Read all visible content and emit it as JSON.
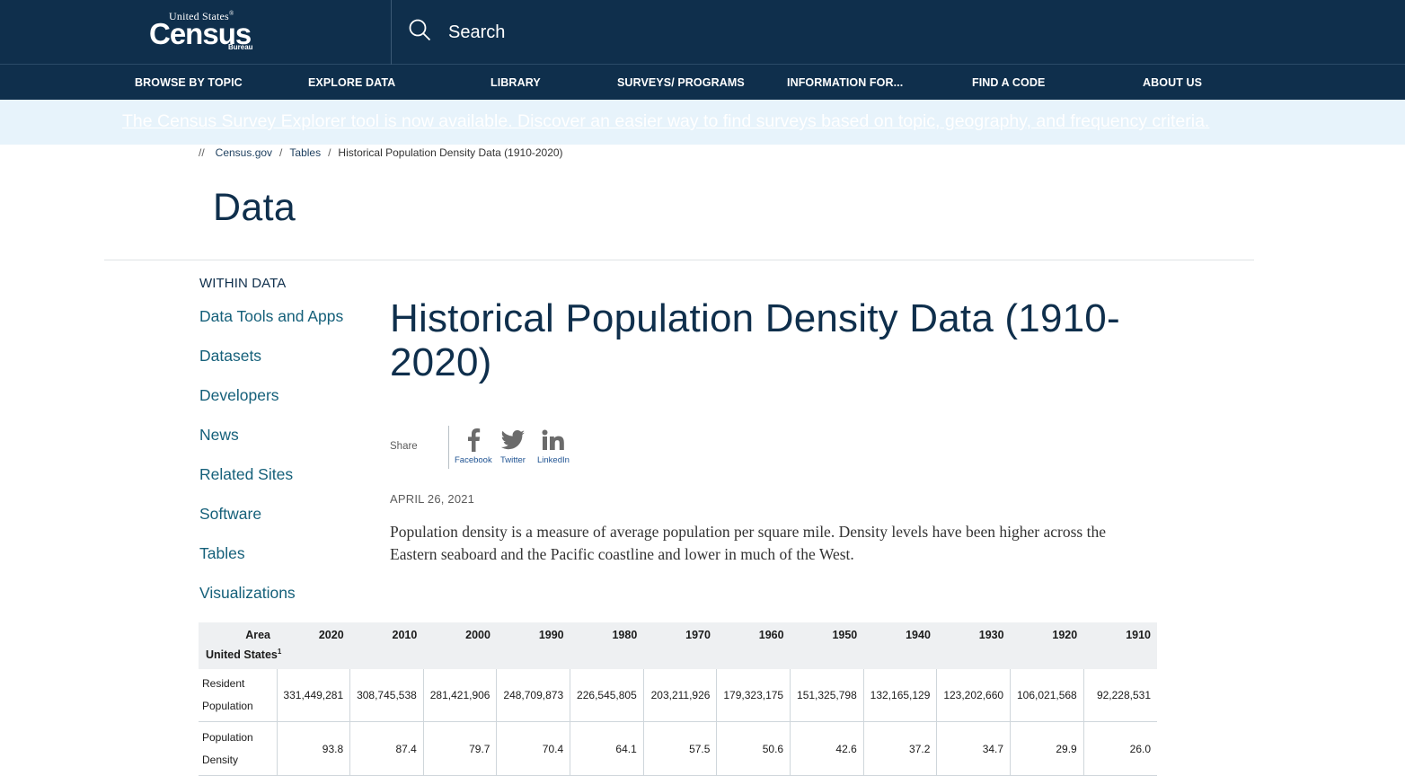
{
  "header": {
    "logo": {
      "line1": "United States",
      "registered": "®",
      "wordmark": "Census",
      "line3": "Bureau"
    },
    "search_label": "Search",
    "icons": {
      "search": "search-icon"
    },
    "colors": {
      "brand_navy": "#0f2f4c",
      "banner_bg": "#e7f3fb",
      "link_teal": "#15607a"
    }
  },
  "nav": {
    "items": [
      "BROWSE BY TOPIC",
      "EXPLORE DATA",
      "LIBRARY",
      "SURVEYS/ PROGRAMS",
      "INFORMATION FOR...",
      "FIND A CODE",
      "ABOUT US"
    ]
  },
  "banner": {
    "text": "The Census Survey Explorer tool is now available. Discover an easier way to find surveys based on topic, geography, and frequency criteria."
  },
  "breadcrumb": {
    "prefix": "//",
    "items": [
      "Census.gov",
      "Tables"
    ],
    "current": "Historical Population Density Data (1910-2020)",
    "separator": "/"
  },
  "section_title": "Data",
  "sidenav": {
    "heading": "WITHIN DATA",
    "items": [
      "Data Tools and Apps",
      "Datasets",
      "Developers",
      "News",
      "Related Sites",
      "Software",
      "Tables",
      "Visualizations"
    ]
  },
  "article": {
    "title": "Historical Population Density Data (1910-2020)",
    "share_label": "Share",
    "social": [
      {
        "label": "Facebook",
        "icon": "facebook-icon"
      },
      {
        "label": "Twitter",
        "icon": "twitter-icon"
      },
      {
        "label": "LinkedIn",
        "icon": "linkedin-icon"
      }
    ],
    "date": "APRIL 26, 2021",
    "description": "Population density is a measure of average population per square mile. Density levels have been higher across the Eastern seaboard and the Pacific coastline and lower in much of the West."
  },
  "table": {
    "header": [
      "Area",
      "2020",
      "2010",
      "2000",
      "1990",
      "1980",
      "1970",
      "1960",
      "1950",
      "1940",
      "1930",
      "1920",
      "1910"
    ],
    "group": {
      "label": "United States",
      "footnote": "1"
    },
    "rows": [
      {
        "label": "Resident Population",
        "values": [
          "331,449,281",
          "308,745,538",
          "281,421,906",
          "248,709,873",
          "226,545,805",
          "203,211,926",
          "179,323,175",
          "151,325,798",
          "132,165,129",
          "123,202,660",
          "106,021,568",
          "92,228,531"
        ]
      },
      {
        "label": "Population Density",
        "values": [
          "93.8",
          "87.4",
          "79.7",
          "70.4",
          "64.1",
          "57.5",
          "50.6",
          "42.6",
          "37.2",
          "34.7",
          "29.9",
          "26.0"
        ]
      }
    ]
  }
}
